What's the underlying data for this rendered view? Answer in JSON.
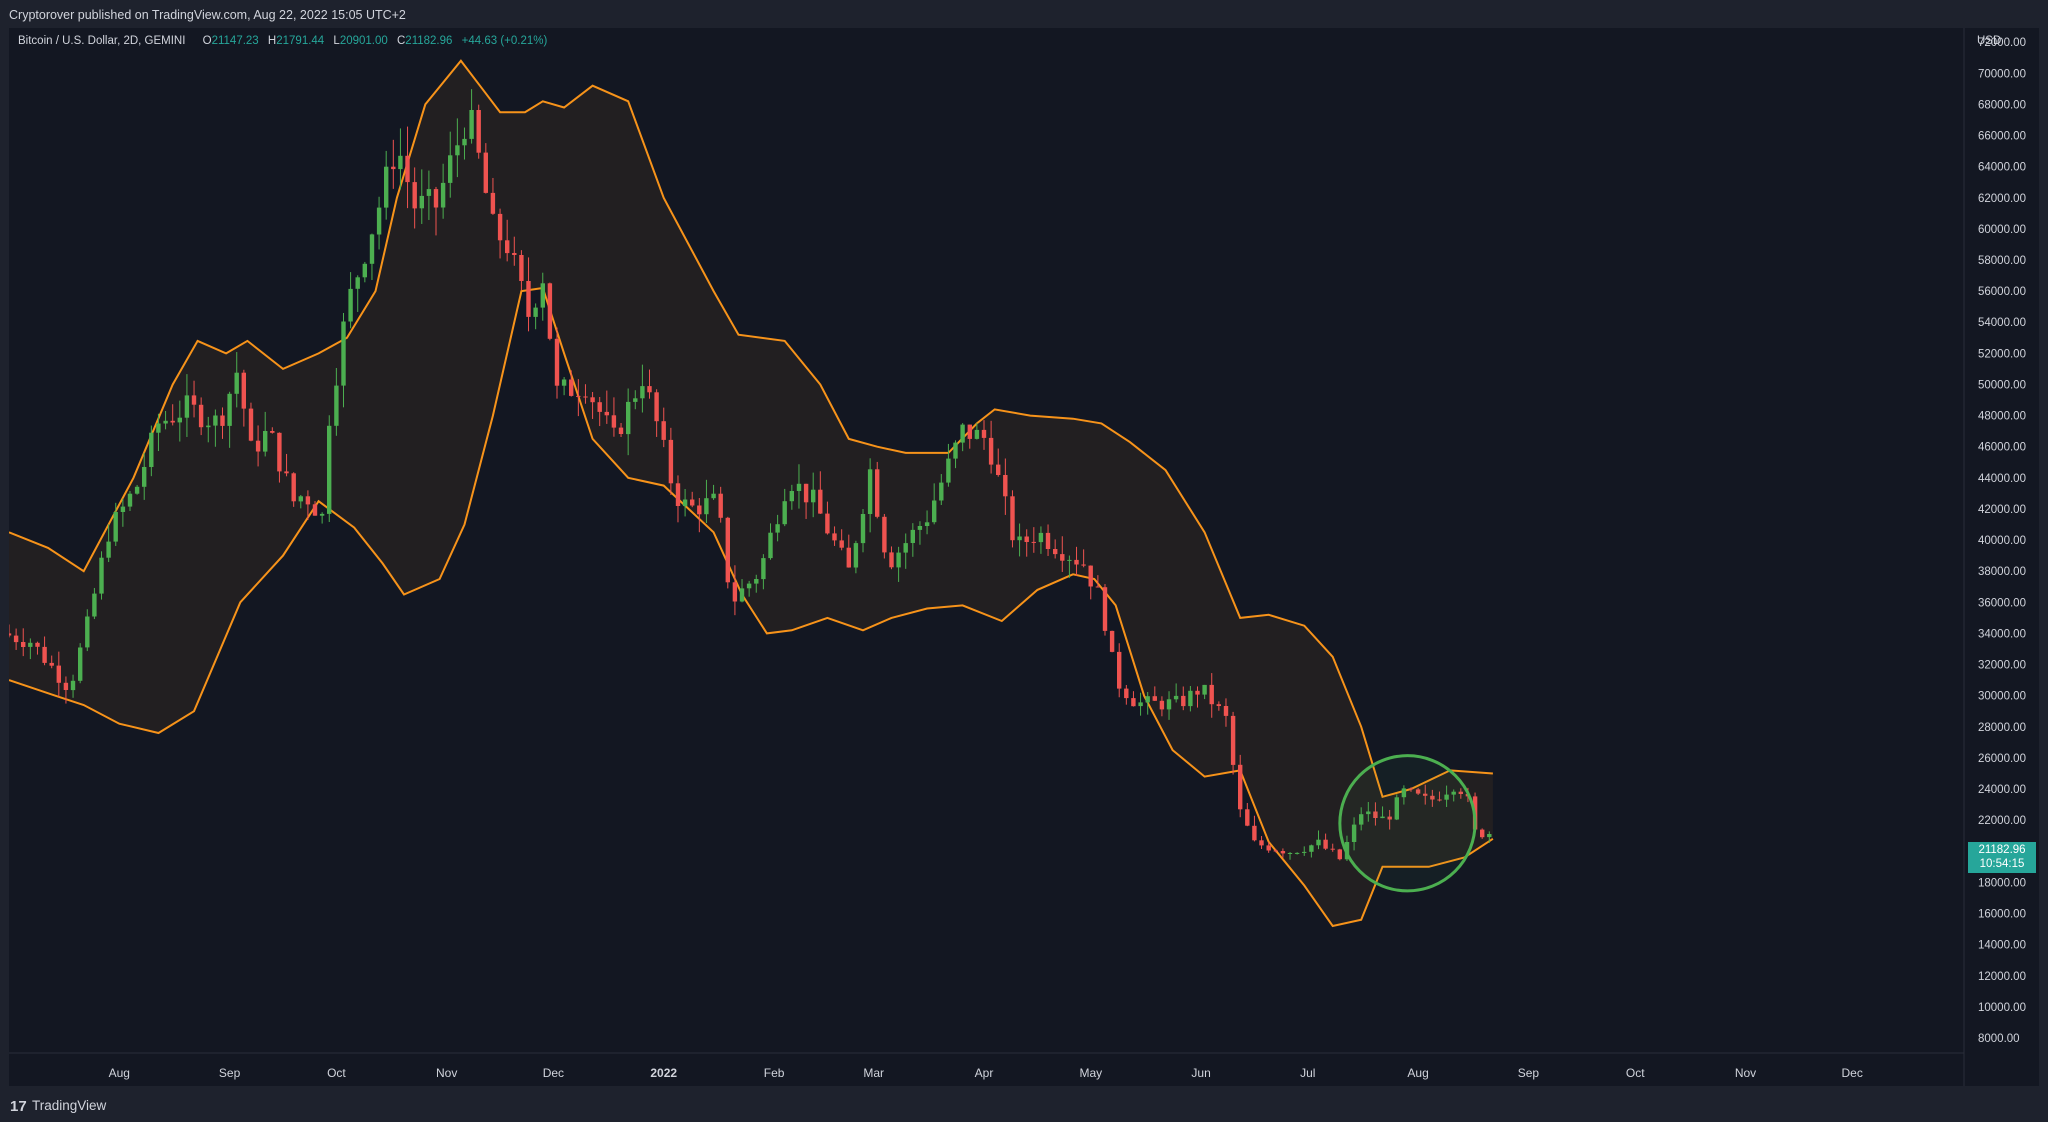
{
  "header": {
    "published_by": "Cryptorover published on TradingView.com, Aug 22, 2022 15:05 UTC+2"
  },
  "legend": {
    "symbol": "Bitcoin / U.S. Dollar, 2D, GEMINI",
    "open_label": "O",
    "open": "21147.23",
    "high_label": "H",
    "high": "21791.44",
    "low_label": "L",
    "low": "20901.00",
    "close_label": "C",
    "close": "21182.96",
    "change": "+44.63 (+0.21%)"
  },
  "price_tag": {
    "price": "21182.96",
    "countdown": "10:54:15"
  },
  "footer": {
    "brand": "TradingView",
    "logo_glyph": "17"
  },
  "colors": {
    "background": "#131722",
    "frame": "#1e222d",
    "up": "#26a69a",
    "candle_up": "#4caf50",
    "down": "#ef5350",
    "band": "#f7931a",
    "highlight_circle": "#4caf50",
    "text": "#d1d4dc"
  },
  "chart_data": {
    "type": "candlestick",
    "title": "Bitcoin / U.S. Dollar, 2D, GEMINI",
    "currency_label": "USD",
    "ylim": [
      8000,
      72000
    ],
    "yticks": [
      8000,
      10000,
      12000,
      14000,
      16000,
      18000,
      20000,
      22000,
      24000,
      26000,
      28000,
      30000,
      32000,
      34000,
      36000,
      38000,
      40000,
      42000,
      44000,
      46000,
      48000,
      50000,
      52000,
      54000,
      56000,
      58000,
      60000,
      62000,
      64000,
      66000,
      68000,
      70000,
      72000
    ],
    "ytick_labels": [
      "8000.00",
      "10000.00",
      "12000.00",
      "14000.00",
      "16000.00",
      "18000.00",
      "20000.00",
      "22000.00",
      "24000.00",
      "26000.00",
      "28000.00",
      "30000.00",
      "32000.00",
      "34000.00",
      "36000.00",
      "38000.00",
      "40000.00",
      "42000.00",
      "44000.00",
      "46000.00",
      "48000.00",
      "50000.00",
      "52000.00",
      "54000.00",
      "56000.00",
      "58000.00",
      "60000.00",
      "62000.00",
      "64000.00",
      "66000.00",
      "68000.00",
      "70000.00",
      "72000.00"
    ],
    "xlim": [
      "2021-07-01",
      "2022-12-31"
    ],
    "x_ticks": [
      {
        "date": "2021-08-01",
        "label": "Aug",
        "bold": false
      },
      {
        "date": "2021-09-01",
        "label": "Sep",
        "bold": false
      },
      {
        "date": "2021-10-01",
        "label": "Oct",
        "bold": false
      },
      {
        "date": "2021-11-01",
        "label": "Nov",
        "bold": false
      },
      {
        "date": "2021-12-01",
        "label": "Dec",
        "bold": false
      },
      {
        "date": "2022-01-01",
        "label": "2022",
        "bold": true
      },
      {
        "date": "2022-02-01",
        "label": "Feb",
        "bold": false
      },
      {
        "date": "2022-03-01",
        "label": "Mar",
        "bold": false
      },
      {
        "date": "2022-04-01",
        "label": "Apr",
        "bold": false
      },
      {
        "date": "2022-05-01",
        "label": "May",
        "bold": false
      },
      {
        "date": "2022-06-01",
        "label": "Jun",
        "bold": false
      },
      {
        "date": "2022-07-01",
        "label": "Jul",
        "bold": false
      },
      {
        "date": "2022-08-01",
        "label": "Aug",
        "bold": false
      },
      {
        "date": "2022-09-01",
        "label": "Sep",
        "bold": false
      },
      {
        "date": "2022-10-01",
        "label": "Oct",
        "bold": false
      },
      {
        "date": "2022-11-01",
        "label": "Nov",
        "bold": false
      },
      {
        "date": "2022-12-01",
        "label": "Dec",
        "bold": false
      }
    ],
    "candle_anchors": [
      [
        "2021-07-01",
        34000
      ],
      [
        "2021-07-09",
        33500
      ],
      [
        "2021-07-20",
        30500
      ],
      [
        "2021-07-25",
        34500
      ],
      [
        "2021-07-31",
        40500
      ],
      [
        "2021-08-08",
        43500
      ],
      [
        "2021-08-14",
        47500
      ],
      [
        "2021-08-22",
        48500
      ],
      [
        "2021-08-31",
        47500
      ],
      [
        "2021-09-06",
        51500
      ],
      [
        "2021-09-08",
        45500
      ],
      [
        "2021-09-14",
        47000
      ],
      [
        "2021-09-21",
        42500
      ],
      [
        "2021-09-24",
        43000
      ],
      [
        "2021-09-29",
        41500
      ],
      [
        "2021-10-01",
        48000
      ],
      [
        "2021-10-06",
        55000
      ],
      [
        "2021-10-15",
        61500
      ],
      [
        "2021-10-20",
        65500
      ],
      [
        "2021-10-25",
        61500
      ],
      [
        "2021-10-31",
        61500
      ],
      [
        "2021-11-09",
        67500
      ],
      [
        "2021-11-12",
        64500
      ],
      [
        "2021-11-16",
        60000
      ],
      [
        "2021-11-20",
        59000
      ],
      [
        "2021-11-26",
        54500
      ],
      [
        "2021-11-30",
        57000
      ],
      [
        "2021-12-04",
        49500
      ],
      [
        "2021-12-12",
        50000
      ],
      [
        "2021-12-20",
        46500
      ],
      [
        "2021-12-28",
        50500
      ],
      [
        "2022-01-01",
        47500
      ],
      [
        "2022-01-06",
        43000
      ],
      [
        "2022-01-10",
        42000
      ],
      [
        "2022-01-18",
        42500
      ],
      [
        "2022-01-22",
        36000
      ],
      [
        "2022-01-30",
        38000
      ],
      [
        "2022-02-07",
        44000
      ],
      [
        "2022-02-14",
        42500
      ],
      [
        "2022-02-24",
        38000
      ],
      [
        "2022-03-02",
        44500
      ],
      [
        "2022-03-07",
        38500
      ],
      [
        "2022-03-18",
        41500
      ],
      [
        "2022-03-28",
        47000
      ],
      [
        "2022-04-04",
        46500
      ],
      [
        "2022-04-12",
        39500
      ],
      [
        "2022-04-18",
        40500
      ],
      [
        "2022-04-24",
        39500
      ],
      [
        "2022-05-01",
        38500
      ],
      [
        "2022-05-06",
        36000
      ],
      [
        "2022-05-10",
        31000
      ],
      [
        "2022-05-16",
        29500
      ],
      [
        "2022-05-28",
        29500
      ],
      [
        "2022-06-03",
        30500
      ],
      [
        "2022-06-10",
        28500
      ],
      [
        "2022-06-14",
        22500
      ],
      [
        "2022-06-18",
        20500
      ],
      [
        "2022-06-28",
        20000
      ],
      [
        "2022-07-06",
        20500
      ],
      [
        "2022-07-12",
        19500
      ],
      [
        "2022-07-18",
        22500
      ],
      [
        "2022-07-25",
        22000
      ],
      [
        "2022-07-30",
        23800
      ],
      [
        "2022-08-06",
        23200
      ],
      [
        "2022-08-14",
        24400
      ],
      [
        "2022-08-17",
        23200
      ],
      [
        "2022-08-19",
        21200
      ],
      [
        "2022-08-22",
        21183
      ]
    ],
    "series": [
      {
        "name": "",
        "type": "band_upper",
        "points": [
          [
            "2021-07-01",
            40500
          ],
          [
            "2021-07-12",
            39500
          ],
          [
            "2021-07-22",
            38000
          ],
          [
            "2021-08-05",
            44000
          ],
          [
            "2021-08-16",
            50000
          ],
          [
            "2021-08-23",
            52800
          ],
          [
            "2021-08-31",
            52000
          ],
          [
            "2021-09-06",
            52800
          ],
          [
            "2021-09-16",
            51000
          ],
          [
            "2021-09-26",
            52000
          ],
          [
            "2021-10-04",
            53000
          ],
          [
            "2021-10-12",
            56000
          ],
          [
            "2021-10-18",
            62000
          ],
          [
            "2021-10-26",
            68000
          ],
          [
            "2021-11-05",
            70800
          ],
          [
            "2021-11-11",
            69000
          ],
          [
            "2021-11-16",
            67500
          ],
          [
            "2021-11-23",
            67500
          ],
          [
            "2021-11-28",
            68200
          ],
          [
            "2021-12-04",
            67800
          ],
          [
            "2021-12-12",
            69200
          ],
          [
            "2021-12-22",
            68200
          ],
          [
            "2022-01-01",
            62000
          ],
          [
            "2022-01-15",
            56000
          ],
          [
            "2022-01-22",
            53200
          ],
          [
            "2022-02-04",
            52800
          ],
          [
            "2022-02-14",
            50000
          ],
          [
            "2022-02-22",
            46500
          ],
          [
            "2022-03-02",
            46000
          ],
          [
            "2022-03-10",
            45600
          ],
          [
            "2022-03-22",
            45600
          ],
          [
            "2022-03-30",
            47500
          ],
          [
            "2022-04-04",
            48400
          ],
          [
            "2022-04-14",
            48000
          ],
          [
            "2022-04-26",
            47800
          ],
          [
            "2022-05-04",
            47500
          ],
          [
            "2022-05-12",
            46300
          ],
          [
            "2022-05-22",
            44500
          ],
          [
            "2022-06-02",
            40500
          ],
          [
            "2022-06-12",
            35000
          ],
          [
            "2022-06-20",
            35200
          ],
          [
            "2022-06-30",
            34500
          ],
          [
            "2022-07-08",
            32500
          ],
          [
            "2022-07-16",
            28000
          ],
          [
            "2022-07-22",
            23500
          ],
          [
            "2022-07-30",
            24000
          ],
          [
            "2022-08-10",
            25200
          ],
          [
            "2022-08-22",
            25000
          ]
        ]
      },
      {
        "name": "",
        "type": "band_lower",
        "points": [
          [
            "2021-07-01",
            31000
          ],
          [
            "2021-07-14",
            30000
          ],
          [
            "2021-07-22",
            29400
          ],
          [
            "2021-08-01",
            28200
          ],
          [
            "2021-08-12",
            27600
          ],
          [
            "2021-08-22",
            29000
          ],
          [
            "2021-09-04",
            36000
          ],
          [
            "2021-09-16",
            39000
          ],
          [
            "2021-09-26",
            42500
          ],
          [
            "2021-10-06",
            40800
          ],
          [
            "2021-10-14",
            38500
          ],
          [
            "2021-10-20",
            36500
          ],
          [
            "2021-10-30",
            37500
          ],
          [
            "2021-11-06",
            41000
          ],
          [
            "2021-11-14",
            48000
          ],
          [
            "2021-11-22",
            56000
          ],
          [
            "2021-11-28",
            56200
          ],
          [
            "2021-12-04",
            52000
          ],
          [
            "2021-12-12",
            46500
          ],
          [
            "2021-12-22",
            44000
          ],
          [
            "2022-01-01",
            43500
          ],
          [
            "2022-01-15",
            40500
          ],
          [
            "2022-01-23",
            36500
          ],
          [
            "2022-01-30",
            34000
          ],
          [
            "2022-02-06",
            34200
          ],
          [
            "2022-02-16",
            35000
          ],
          [
            "2022-02-26",
            34200
          ],
          [
            "2022-03-06",
            35000
          ],
          [
            "2022-03-16",
            35600
          ],
          [
            "2022-03-26",
            35800
          ],
          [
            "2022-04-06",
            34800
          ],
          [
            "2022-04-16",
            36800
          ],
          [
            "2022-04-26",
            37800
          ],
          [
            "2022-05-02",
            37500
          ],
          [
            "2022-05-08",
            35800
          ],
          [
            "2022-05-16",
            30000
          ],
          [
            "2022-05-24",
            26500
          ],
          [
            "2022-06-02",
            24800
          ],
          [
            "2022-06-12",
            25200
          ],
          [
            "2022-06-20",
            20600
          ],
          [
            "2022-06-30",
            17800
          ],
          [
            "2022-07-08",
            15200
          ],
          [
            "2022-07-16",
            15600
          ],
          [
            "2022-07-22",
            19000
          ],
          [
            "2022-08-04",
            19000
          ],
          [
            "2022-08-14",
            19600
          ],
          [
            "2022-08-22",
            20800
          ]
        ]
      }
    ],
    "highlight_circle": {
      "center": [
        "2022-07-29",
        21800
      ],
      "radius_days": 19
    }
  }
}
